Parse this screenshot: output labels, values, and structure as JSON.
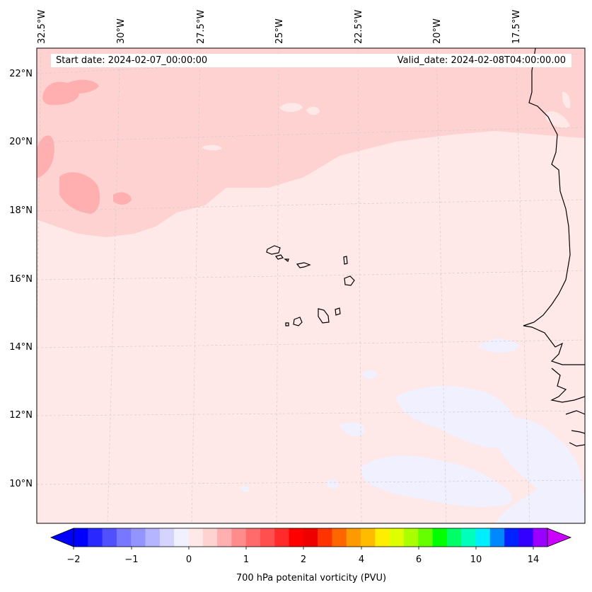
{
  "map": {
    "lon_labels": [
      "32.5°W",
      "30°W",
      "27.5°W",
      "25°W",
      "22.5°W",
      "20°W",
      "17.5°W"
    ],
    "lat_labels": [
      "22°N",
      "20°N",
      "18°N",
      "16°N",
      "14°N",
      "12°N",
      "10°N"
    ],
    "start_date": "Start date: 2024-02-07_00:00:00",
    "valid_date": "Valid_date: 2024-02-08T04:00:00.00",
    "field_colors": {
      "background": "#ffe8e8",
      "band": "#ffd2d2",
      "core": "#ffafaf",
      "negative": "#f0f0ff"
    }
  },
  "colorbar": {
    "label": "700 hPa potenital vorticity (PVU)",
    "ticks": [
      "−2",
      "−1",
      "0",
      "1",
      "2",
      "4",
      "6",
      "10",
      "14"
    ],
    "colors": [
      "#0000ff",
      "#2828ff",
      "#5050ff",
      "#7777ff",
      "#9494ff",
      "#b4b4ff",
      "#d4d4ff",
      "#f0f0ff",
      "#ffe8e8",
      "#ffd2d2",
      "#ffafaf",
      "#ff8c8c",
      "#ff6a6a",
      "#ff4f4f",
      "#ff2b2b",
      "#ff0000",
      "#ee0000",
      "#ff3300",
      "#ff6600",
      "#ff9900",
      "#ffbb00",
      "#ffee00",
      "#ddff00",
      "#aaff00",
      "#66ff00",
      "#00ff00",
      "#00ff66",
      "#00ffbb",
      "#00eeff",
      "#0088ff",
      "#0022ff",
      "#3300ff",
      "#9900ff"
    ],
    "under_color": "#0000ff",
    "over_color": "#cc00ff"
  }
}
